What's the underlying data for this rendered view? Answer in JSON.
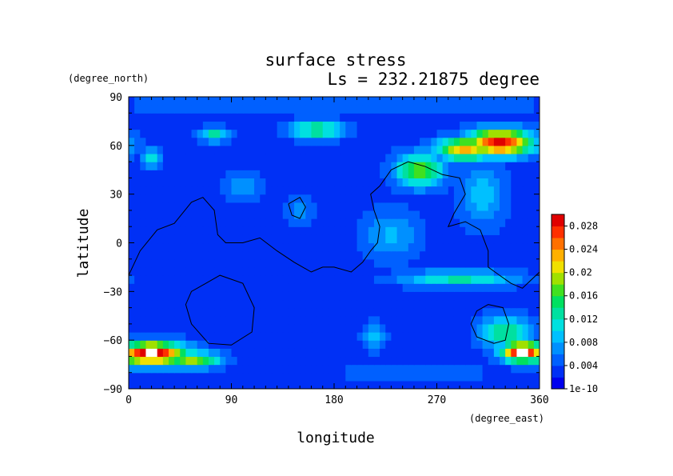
{
  "chart_data": {
    "type": "heatmap",
    "title": "surface stress",
    "subtitle": "Ls = 232.21875 degree",
    "xlabel": "longitude",
    "ylabel": "latitude",
    "xunit": "(degree_east)",
    "yunit": "(degree_north)",
    "xlim": [
      0,
      360
    ],
    "ylim": [
      -90,
      90
    ],
    "xticks": [
      0,
      90,
      180,
      270,
      360
    ],
    "yticks": [
      -90,
      -60,
      -30,
      0,
      30,
      60,
      90
    ],
    "xtick_labels": [
      "0",
      "90",
      "180",
      "270",
      "360"
    ],
    "ytick_labels": [
      "−90",
      "−60",
      "−30",
      "0",
      "30",
      "60",
      "90"
    ],
    "colorbar": {
      "min": 0,
      "max": 0.03,
      "tick_values": [
        0,
        0.004,
        0.008,
        0.012,
        0.016,
        0.02,
        0.024,
        0.028
      ],
      "tick_labels": [
        "1e-10",
        "0.004",
        "0.008",
        "0.012",
        "0.016",
        "0.02",
        "0.024",
        "0.028"
      ],
      "colors": [
        "#0000ee",
        "#0030f5",
        "#0060ff",
        "#0090ff",
        "#00c0ff",
        "#00e0e0",
        "#00e0a0",
        "#00e060",
        "#40e020",
        "#a0e000",
        "#f0e000",
        "#ffb000",
        "#ff7000",
        "#ff3000",
        "#e00000"
      ]
    },
    "grid": false,
    "features": [
      {
        "lon": 325,
        "lat": 62,
        "radius_lon": 28,
        "radius_lat": 8,
        "value": 0.028
      },
      {
        "lon": 255,
        "lat": 45,
        "radius_lon": 22,
        "radius_lat": 10,
        "value": 0.017
      },
      {
        "lon": 295,
        "lat": 58,
        "radius_lon": 25,
        "radius_lat": 7,
        "value": 0.022
      },
      {
        "lon": 165,
        "lat": 70,
        "radius_lon": 22,
        "radius_lat": 6,
        "value": 0.014
      },
      {
        "lon": 75,
        "lat": 67,
        "radius_lon": 12,
        "radius_lat": 5,
        "value": 0.012
      },
      {
        "lon": 20,
        "lat": 52,
        "radius_lon": 8,
        "radius_lat": 6,
        "value": 0.012
      },
      {
        "lon": 310,
        "lat": 30,
        "radius_lon": 20,
        "radius_lat": 20,
        "value": 0.009
      },
      {
        "lon": 290,
        "lat": -22,
        "radius_lon": 50,
        "radius_lat": 5,
        "value": 0.012
      },
      {
        "lon": 330,
        "lat": -55,
        "radius_lon": 20,
        "radius_lat": 10,
        "value": 0.014
      },
      {
        "lon": 345,
        "lat": -67,
        "radius_lon": 18,
        "radius_lat": 6,
        "value": 0.03
      },
      {
        "lon": 20,
        "lat": -68,
        "radius_lon": 30,
        "radius_lat": 7,
        "value": 0.03
      },
      {
        "lon": 55,
        "lat": -72,
        "radius_lon": 25,
        "radius_lat": 5,
        "value": 0.018
      },
      {
        "lon": 215,
        "lat": -58,
        "radius_lon": 10,
        "radius_lat": 8,
        "value": 0.009
      },
      {
        "lon": 230,
        "lat": 5,
        "radius_lon": 25,
        "radius_lat": 15,
        "value": 0.008
      },
      {
        "lon": 150,
        "lat": 20,
        "radius_lon": 12,
        "radius_lat": 8,
        "value": 0.007
      },
      {
        "lon": 100,
        "lat": 35,
        "radius_lon": 15,
        "radius_lat": 10,
        "value": 0.007
      },
      {
        "lon": 180,
        "lat": 85,
        "radius_lon": 180,
        "radius_lat": 5,
        "value": 0.006
      },
      {
        "lon": 250,
        "lat": -80,
        "radius_lon": 60,
        "radius_lat": 6,
        "value": 0.006
      }
    ],
    "contours": [
      [
        [
          0,
          -20
        ],
        [
          10,
          -5
        ],
        [
          25,
          8
        ],
        [
          40,
          12
        ],
        [
          55,
          25
        ],
        [
          65,
          28
        ],
        [
          75,
          20
        ],
        [
          78,
          5
        ],
        [
          85,
          0
        ],
        [
          100,
          0
        ],
        [
          115,
          3
        ],
        [
          130,
          -5
        ],
        [
          145,
          -12
        ],
        [
          160,
          -18
        ],
        [
          170,
          -15
        ],
        [
          180,
          -15
        ],
        [
          195,
          -18
        ],
        [
          205,
          -12
        ],
        [
          212,
          -5
        ],
        [
          218,
          0
        ],
        [
          220,
          10
        ],
        [
          215,
          20
        ],
        [
          212,
          30
        ],
        [
          220,
          35
        ],
        [
          230,
          45
        ],
        [
          245,
          50
        ],
        [
          260,
          47
        ],
        [
          275,
          42
        ],
        [
          290,
          40
        ],
        [
          295,
          30
        ],
        [
          285,
          18
        ],
        [
          280,
          10
        ],
        [
          295,
          13
        ],
        [
          308,
          8
        ],
        [
          315,
          -5
        ],
        [
          315,
          -15
        ],
        [
          325,
          -20
        ],
        [
          335,
          -25
        ],
        [
          345,
          -28
        ],
        [
          360,
          -18
        ]
      ],
      [
        [
          60,
          -28
        ],
        [
          80,
          -20
        ],
        [
          100,
          -25
        ],
        [
          110,
          -40
        ],
        [
          108,
          -55
        ],
        [
          90,
          -63
        ],
        [
          70,
          -62
        ],
        [
          55,
          -50
        ],
        [
          50,
          -38
        ],
        [
          55,
          -30
        ],
        [
          60,
          -28
        ]
      ],
      [
        [
          315,
          -38
        ],
        [
          328,
          -40
        ],
        [
          333,
          -50
        ],
        [
          330,
          -60
        ],
        [
          320,
          -62
        ],
        [
          305,
          -58
        ],
        [
          300,
          -50
        ],
        [
          305,
          -42
        ],
        [
          315,
          -38
        ]
      ],
      [
        [
          140,
          24
        ],
        [
          150,
          28
        ],
        [
          155,
          22
        ],
        [
          150,
          15
        ],
        [
          143,
          17
        ],
        [
          140,
          24
        ]
      ]
    ]
  }
}
